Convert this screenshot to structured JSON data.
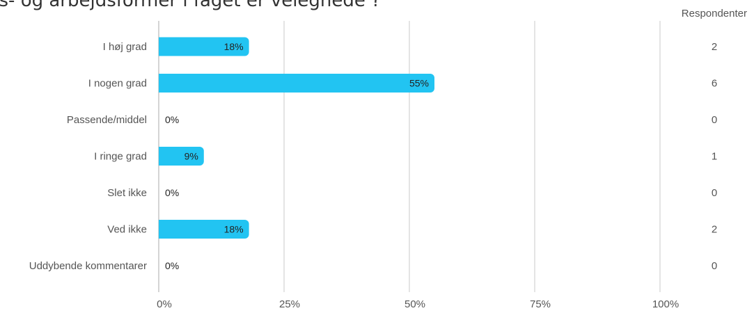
{
  "chart_data": {
    "type": "bar",
    "orientation": "horizontal",
    "title": "gs- og arbejdsformer i faget er velegnede ?",
    "categories": [
      "I høj grad",
      "I nogen grad",
      "Passende/middel",
      "I ringe grad",
      "Slet ikke",
      "Ved ikke",
      "Uddybende kommentarer"
    ],
    "values": [
      18,
      55,
      0,
      9,
      0,
      18,
      0
    ],
    "value_labels": [
      "18%",
      "55%",
      "0%",
      "9%",
      "0%",
      "18%",
      "0%"
    ],
    "respondents_header": "Respondenter",
    "respondents": [
      "2",
      "6",
      "0",
      "1",
      "0",
      "2",
      "0"
    ],
    "x_ticks": [
      "0%",
      "25%",
      "50%",
      "75%",
      "100%"
    ],
    "xlim": [
      0,
      100
    ],
    "bar_color": "#22c4f2",
    "grid_color": "#c8c8c8",
    "grid": true,
    "legend": "none"
  }
}
